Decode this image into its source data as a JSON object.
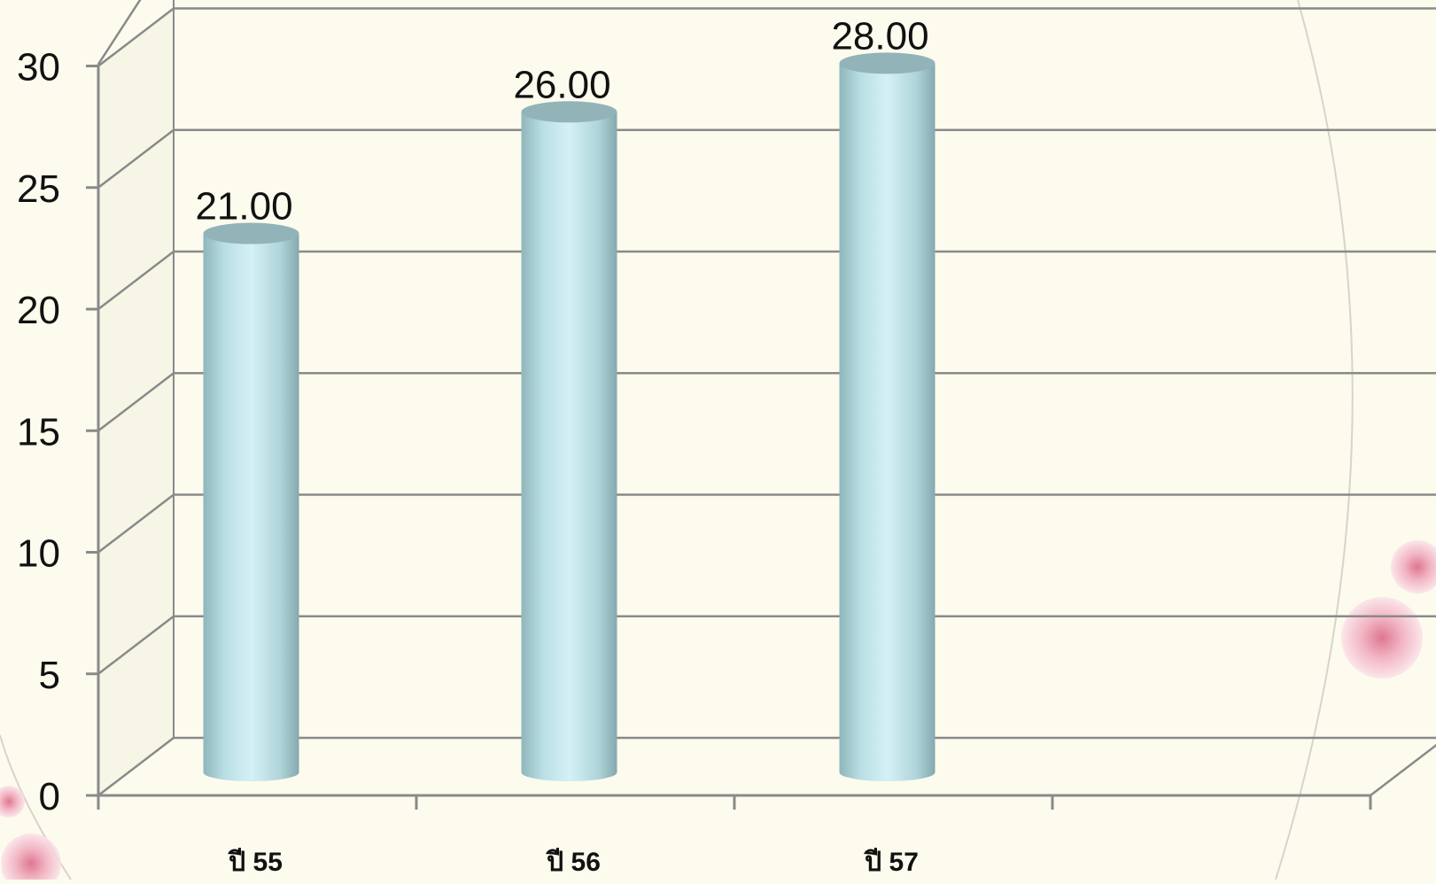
{
  "chart_data": {
    "type": "bar",
    "style": "3d-cylinder",
    "categories": [
      "ปี 55",
      "ปี 56",
      "ปี 57",
      ""
    ],
    "values": [
      21.0,
      26.0,
      28.0,
      null
    ],
    "data_labels": [
      "21.00",
      "26.00",
      "28.00",
      ""
    ],
    "title": "",
    "xlabel": "",
    "ylabel": "",
    "ylim": [
      0,
      30
    ],
    "yticks": [
      0,
      5,
      10,
      15,
      20,
      25,
      30
    ],
    "grid": true,
    "legend": "none",
    "colors": {
      "bar": "#bfe3e8",
      "bar_top": "#92b3b8",
      "grid": "#8a8a8a",
      "background": "#fcfbee",
      "blossom": "#e8a1b6"
    }
  }
}
